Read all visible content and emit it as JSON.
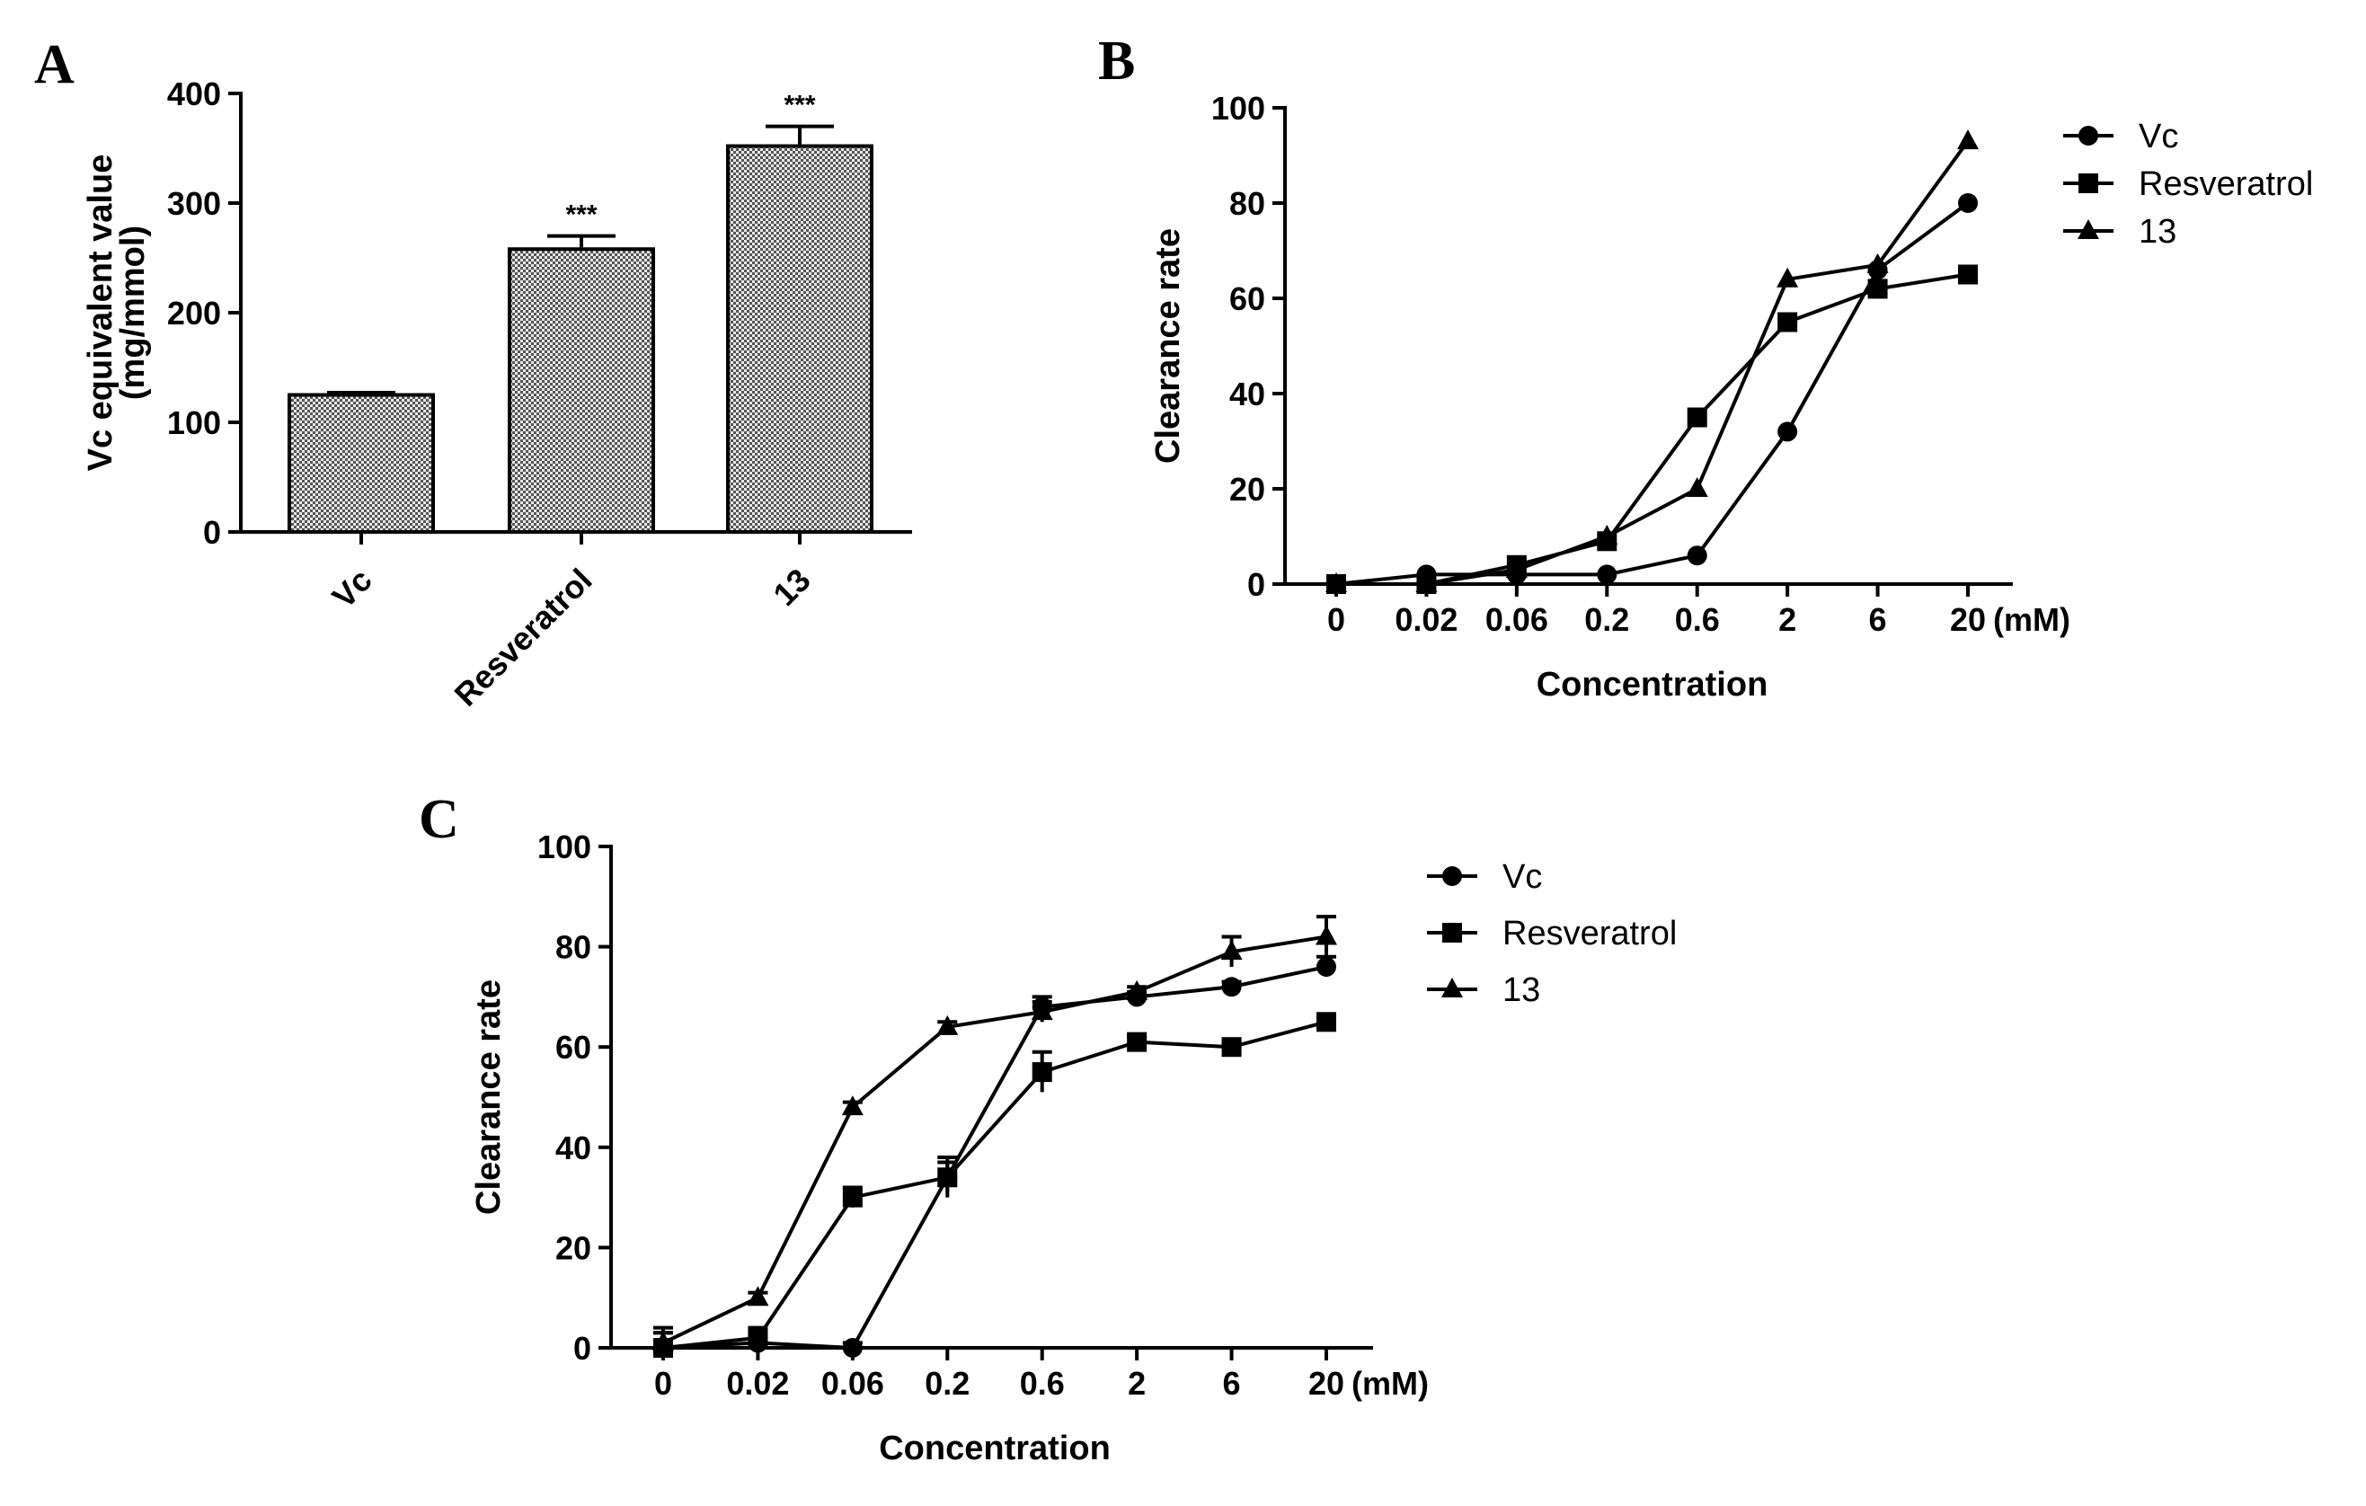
{
  "chart_data": [
    {
      "panel": "A",
      "type": "bar",
      "title": "",
      "ylabel_line1": "Vc equivalent value",
      "ylabel_line2": "(mg/mmol)",
      "xlabel": "",
      "ylim": [
        0,
        400
      ],
      "yticks": [
        "0",
        "100",
        "200",
        "300",
        "400"
      ],
      "categories": [
        "Vc",
        "Resveratrol",
        "13"
      ],
      "values": [
        125,
        258,
        352
      ],
      "errors": [
        2,
        12,
        18
      ],
      "annotations": [
        "",
        "***",
        "***"
      ]
    },
    {
      "panel": "B",
      "type": "line",
      "xlabel": "Concentration",
      "unit_label": "(mM)",
      "ylabel": "Clearance rate",
      "ylim": [
        0,
        100
      ],
      "yticks": [
        "0",
        "20",
        "40",
        "60",
        "80",
        "100"
      ],
      "x": [
        "0",
        "0.02",
        "0.06",
        "0.2",
        "0.6",
        "2",
        "6",
        "20"
      ],
      "series": [
        {
          "name": "Vc",
          "marker": "circle",
          "values": [
            0,
            2,
            2,
            2,
            6,
            32,
            66,
            80
          ]
        },
        {
          "name": "Resveratrol",
          "marker": "square",
          "values": [
            0,
            0,
            4,
            9,
            35,
            55,
            62,
            65
          ]
        },
        {
          "name": "13",
          "marker": "triangle",
          "values": [
            0,
            0,
            3,
            10,
            20,
            64,
            67,
            93
          ]
        }
      ]
    },
    {
      "panel": "C",
      "type": "line",
      "xlabel": "Concentration",
      "unit_label": "(mM)",
      "ylabel": "Clearance rate",
      "ylim": [
        0,
        100
      ],
      "yticks": [
        "0",
        "20",
        "40",
        "60",
        "80",
        "100"
      ],
      "x": [
        "0",
        "0.02",
        "0.06",
        "0.2",
        "0.6",
        "2",
        "6",
        "20"
      ],
      "series": [
        {
          "name": "Vc",
          "marker": "circle",
          "values": [
            0,
            1,
            0,
            34,
            68,
            70,
            72,
            76
          ],
          "errors": [
            3,
            1,
            1,
            3,
            2,
            1,
            1,
            2
          ]
        },
        {
          "name": "Resveratrol",
          "marker": "square",
          "values": [
            0,
            2,
            30,
            34,
            55,
            61,
            60,
            65
          ],
          "errors": [
            4,
            2,
            2,
            4,
            4,
            1,
            1,
            1
          ]
        },
        {
          "name": "13",
          "marker": "triangle",
          "values": [
            1,
            10,
            48,
            64,
            67,
            71,
            79,
            82
          ],
          "errors": [
            2,
            1,
            1,
            1,
            2,
            1,
            3,
            4
          ]
        }
      ]
    }
  ]
}
